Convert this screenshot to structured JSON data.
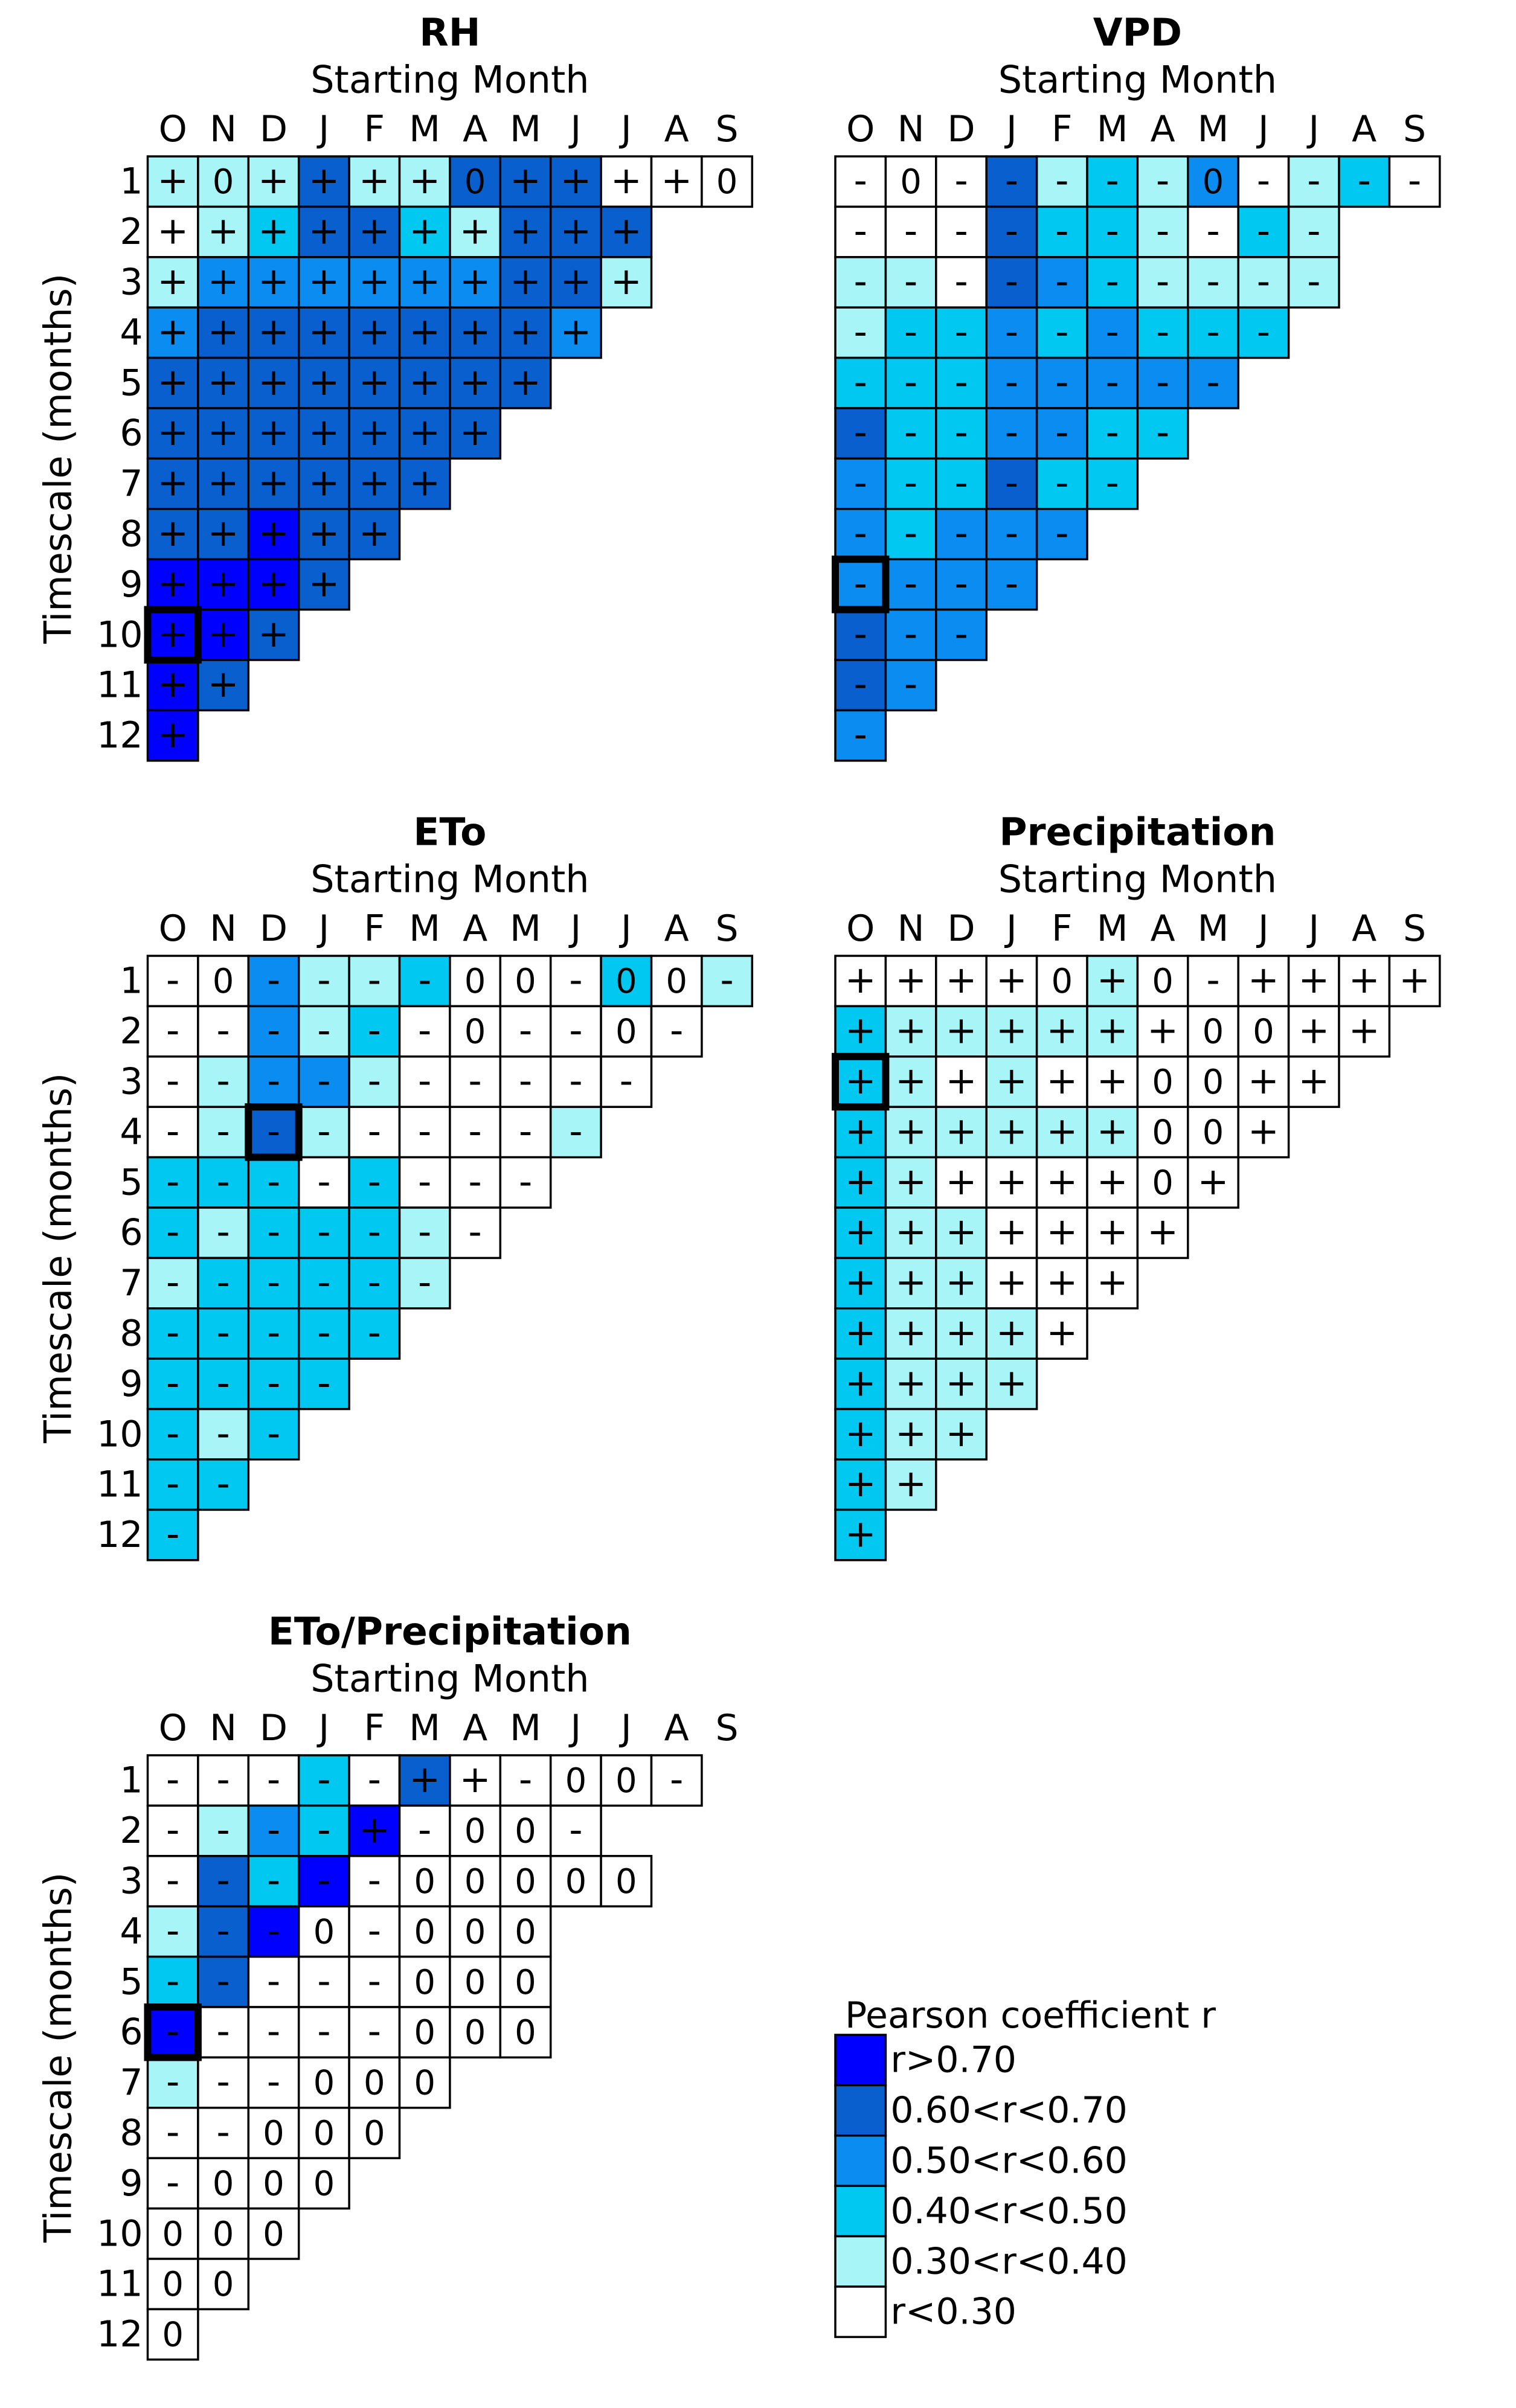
{
  "colors": {
    "c5": "#0000ff",
    "c4": "#0a5fcf",
    "c3": "#0a8cf0",
    "c2": "#00c8f0",
    "c1": "#a8f5f8",
    "c0": "#ffffff",
    "sign_red": "#ff1a1a",
    "sign_orange": "#ffb000",
    "sign_black": "#000000"
  },
  "chart_data": [
    {
      "type": "heatmap",
      "title": "RH",
      "xlabel": "Starting Month",
      "ylabel": "Timescale (months)",
      "x_labels": [
        "O",
        "N",
        "D",
        "J",
        "F",
        "M",
        "A",
        "M",
        "J",
        "J",
        "A",
        "S"
      ],
      "y_labels": [
        "1",
        "2",
        "3",
        "4",
        "5",
        "6",
        "7",
        "8",
        "9",
        "10",
        "11",
        "12"
      ],
      "class_rows": [
        "111411444000",
        "012442144400",
        "133333344100",
        "344444443100",
        "444444441000",
        "444444420000",
        "444444400000",
        "445440000000",
        "555400000000",
        "554000000000",
        "540000000000",
        "500000000000"
      ],
      "sign_rows": [
        "+0++++0++++0",
        "++++++++++",
        "++++++++++",
        "+++++++++",
        "++++++++",
        "+++++++",
        "++++++",
        "+++++",
        "++++",
        "+++",
        "++",
        "+"
      ],
      "sign_color_rows": [
        "kkrokrkorkkk",
        "kkrrrokrrkk",
        "orrrorrrrk",
        "rrrrrrrrk",
        "rrrrrrrr",
        "rrrrrro",
        "rrrrrr",
        "rrrrr",
        "rrrr",
        "rrr",
        "rr",
        "r"
      ],
      "highlight": {
        "row": 10,
        "col": "O"
      }
    },
    {
      "type": "heatmap",
      "title": "VPD",
      "xlabel": "Starting Month",
      "ylabel": "",
      "x_labels": [
        "O",
        "N",
        "D",
        "J",
        "F",
        "M",
        "A",
        "M",
        "J",
        "J",
        "A",
        "S"
      ],
      "y_labels": [],
      "class_rows": [
        "000412130120",
        "000422102100",
        "110432111100",
        "122323222100",
        "222333332000",
        "422332220000",
        "322422300000",
        "323330000000",
        "333300000000",
        "433000000000",
        "430000000000",
        "300000000000"
      ],
      "sign_rows": [
        "-0-----0----",
        "----------",
        "----------",
        "---------",
        "--------",
        "-------",
        "------",
        "-----",
        "----",
        "---",
        "--",
        "-"
      ],
      "sign_color_rows": [
        "kkrokrkokkkk",
        "kkrorkkokk",
        "korroooook",
        "ooroooook",
        "oorooooo",
        "rorrrro",
        "rrrrrr",
        "rorrr",
        "rrrr",
        "rrr",
        "rr",
        "r"
      ],
      "highlight": {
        "row": 9,
        "col": "O"
      }
    },
    {
      "type": "heatmap",
      "title": "ETo",
      "xlabel": "Starting Month",
      "ylabel": "Timescale (months)",
      "x_labels": [
        "O",
        "N",
        "D",
        "J",
        "F",
        "M",
        "A",
        "M",
        "J",
        "J",
        "A",
        "S"
      ],
      "y_labels": [
        "1",
        "2",
        "3",
        "4",
        "5",
        "6",
        "7",
        "8",
        "9",
        "10",
        "11",
        "12"
      ],
      "class_rows": [
        "003112000201",
        "003120000000",
        "013310000000",
        "014100001000",
        "222020000000",
        "212221000000",
        "122221000000",
        "222220000000",
        "222200000000",
        "212000000000",
        "220000000000",
        "200000000000"
      ],
      "sign_rows": [
        "-0----00-00-",
        "------0--0-",
        "----------",
        "---------",
        "--------",
        "-------",
        "------",
        "-----",
        "----",
        "---",
        "--",
        "-"
      ],
      "sign_color_rows": [
        "kkrkookkokkk",
        "kkrooookkkk",
        "kkrrkkkkkk",
        "korkkkkkk",
        "oookokkk",
        "okkokkk",
        "okkokk",
        "kookk",
        "kkko",
        "okk",
        "ko",
        "o"
      ],
      "highlight": {
        "row": 4,
        "col": "D"
      }
    },
    {
      "type": "heatmap",
      "title": "Precipitation",
      "xlabel": "Starting Month",
      "ylabel": "",
      "x_labels": [
        "O",
        "N",
        "D",
        "J",
        "F",
        "M",
        "A",
        "M",
        "J",
        "J",
        "A",
        "S"
      ],
      "y_labels": [],
      "class_rows": [
        "000001000000",
        "211111000000",
        "210100000000",
        "211111000000",
        "210000000000",
        "211000000000",
        "211000000000",
        "211100000000",
        "211100000000",
        "211000000000",
        "210000000000",
        "200000000000"
      ],
      "sign_rows": [
        "++++0+0-++++",
        "+++++++00++",
        "++++++00++",
        "++++++00+",
        "++++++0+",
        "+++++++",
        "++++++",
        "+++++",
        "++++",
        "+++",
        "++",
        "+"
      ],
      "sign_color_rows": [
        "kkkkkokkkkkk",
        "okkkkkkkkkk",
        "ookkkkkkkk",
        "okkkkkkkk",
        "ookkkkkk",
        "okkkkkk",
        "okkkkk",
        "okkkk",
        "okkk",
        "okk",
        "ok",
        "o"
      ],
      "highlight": {
        "row": 3,
        "col": "O"
      }
    },
    {
      "type": "heatmap",
      "title": "ETo/Precipitation",
      "xlabel": "Starting Month",
      "ylabel": "Timescale (months)",
      "x_labels": [
        "O",
        "N",
        "D",
        "J",
        "F",
        "M",
        "A",
        "M",
        "J",
        "J",
        "A",
        "S"
      ],
      "y_labels": [
        "1",
        "2",
        "3",
        "4",
        "5",
        "6",
        "7",
        "8",
        "9",
        "10",
        "11",
        "12"
      ],
      "class_rows": [
        "000204000000",
        "013250000000",
        "042500000000",
        "145000000000",
        "240000000000",
        "500000000000",
        "100000000000",
        "000000000000",
        "000000000000",
        "000000000000",
        "000000000000",
        "000000000000"
      ],
      "sign_rows": [
        "-----++-00-",
        "----+-00-",
        "-----00000",
        "---0-000",
        "-----000",
        "-----000",
        "---000",
        "--000",
        "-000",
        "000",
        "00",
        "0"
      ],
      "sign_color_rows": [
        "kkkrkrkkkkkk",
        "krrrrkkkkk",
        "krorkkkkkk",
        "krrkkkkk",
        "orkkkkkk",
        "rkkkkkkk",
        "kkkkkk",
        "kkkkk",
        "kkkk",
        "kkk",
        "kk",
        "k"
      ],
      "highlight": {
        "row": 6,
        "col": "O"
      }
    }
  ],
  "legend": {
    "title": "Pearson coefficient r",
    "items": [
      {
        "label": "r>0.70",
        "class": 5
      },
      {
        "label": "0.60<r<0.70",
        "class": 4
      },
      {
        "label": "0.50<r<0.60",
        "class": 3
      },
      {
        "label": "0.40<r<0.50",
        "class": 2
      },
      {
        "label": "0.30<r<0.40",
        "class": 1
      },
      {
        "label": "r<0.30",
        "class": 0
      }
    ]
  }
}
